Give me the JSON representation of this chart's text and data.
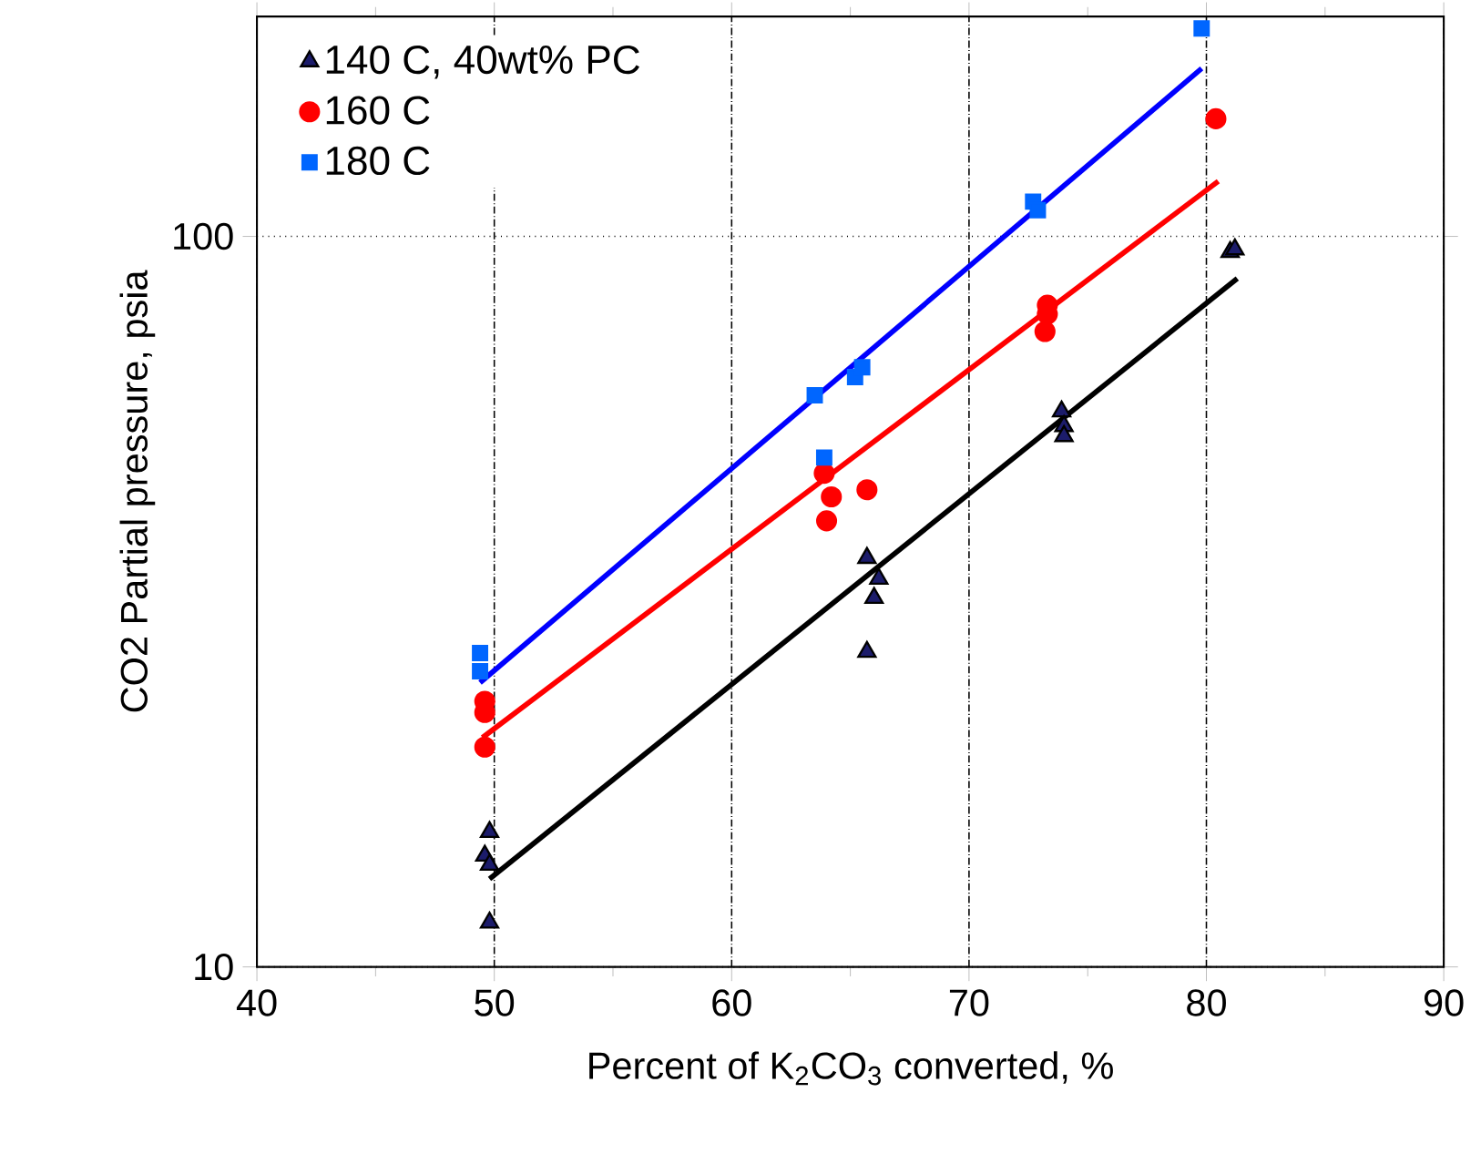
{
  "chart_data": {
    "type": "scatter",
    "xlabel": "Percent of K$_{2}$CO$_{3}$ converted, %",
    "ylabel": "CO2 Partial pressure, psia",
    "xlim": [
      40,
      90
    ],
    "ylim": [
      10,
      200
    ],
    "xticks": [
      40,
      50,
      60,
      70,
      80,
      90
    ],
    "yticks": [
      10,
      100
    ],
    "log": "y",
    "grid": true,
    "legend": "top left",
    "series": [
      {
        "name": "140 C, 40wt% PC",
        "marker": "triangle",
        "color": "#1c1c6b",
        "x": [
          49.8,
          49.6,
          49.8,
          49.8,
          65.7,
          66.2,
          66.0,
          65.7,
          73.9,
          74.0,
          74.0,
          81.0,
          81.2
        ],
        "values": [
          15.3,
          14.2,
          13.8,
          11.5,
          36.3,
          34.0,
          32.0,
          27.0,
          57.6,
          55.0,
          53.3,
          95.2,
          96.0
        ]
      },
      {
        "name": "160 C",
        "marker": "circle",
        "color": "#ff0000",
        "x": [
          49.6,
          49.6,
          49.6,
          63.9,
          64.2,
          64.0,
          65.7,
          73.3,
          73.3,
          73.2,
          80.4
        ],
        "values": [
          23.1,
          22.3,
          20.0,
          47.4,
          44.0,
          40.8,
          45.0,
          80.5,
          78.3,
          74.1,
          144.9
        ]
      },
      {
        "name": "180 C",
        "marker": "square",
        "color": "#0066ff",
        "x": [
          49.4,
          49.4,
          63.5,
          63.9,
          65.2,
          65.5,
          72.7,
          72.9,
          79.8
        ],
        "values": [
          26.9,
          25.4,
          60.6,
          49.8,
          64.2,
          66.2,
          111.6,
          108.6,
          192.6
        ]
      },
      {
        "type": "line",
        "marker": "none",
        "color": "#000000",
        "x": [
          49.8,
          81.3
        ],
        "values": [
          13.2,
          87.6
        ]
      },
      {
        "type": "line",
        "marker": "none",
        "color": "#ff0000",
        "x": [
          49.5,
          80.5
        ],
        "values": [
          20.6,
          119.0
        ]
      },
      {
        "type": "line",
        "marker": "none",
        "color": "#0000ff",
        "x": [
          49.4,
          79.8
        ],
        "values": [
          24.5,
          169.8
        ]
      }
    ]
  }
}
